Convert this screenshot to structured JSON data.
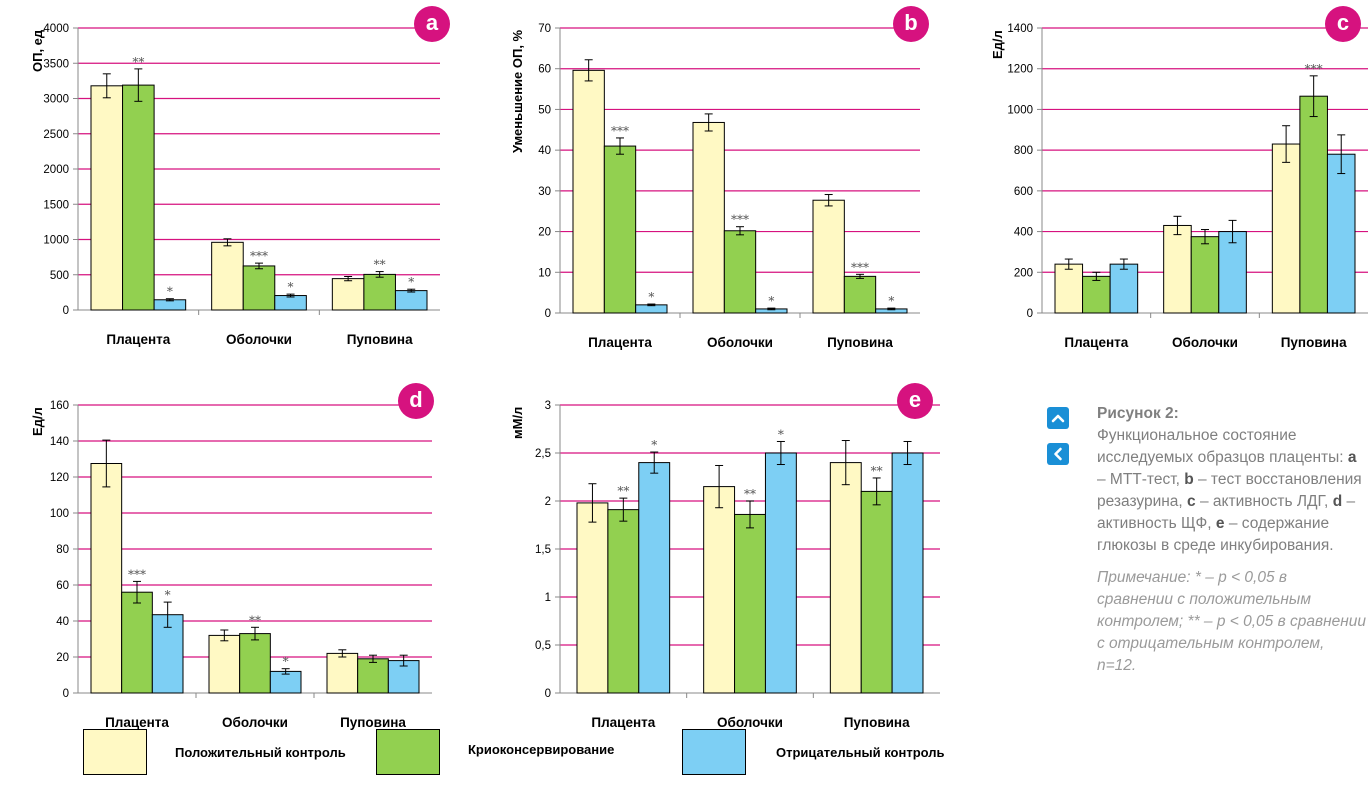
{
  "legend": {
    "positive_label": "Положительный контроль",
    "cryo_label": "Криоконсервирование",
    "negative_label": "Отрицательный контроль",
    "colors": {
      "positive": "#fff9c4",
      "cryo": "#92d050",
      "negative": "#7dcff4"
    }
  },
  "accent_color": "#d6127f",
  "nav": {
    "up_icon": "chevron-up-icon",
    "left_icon": "chevron-left-icon",
    "color": "#1a8fd6"
  },
  "caption": {
    "title": "Рисунок 2:",
    "intro": "Функциональное состояние исследуемых образцов плаценты: ",
    "items": [
      {
        "key": "a",
        "text": " – МТТ-тест,"
      },
      {
        "key": "b",
        "text": " – тест восстановления резазурина,"
      },
      {
        "key": "c",
        "text": " – активность ЛДГ,"
      },
      {
        "key": "d",
        "text": " – активность ЩФ,"
      },
      {
        "key": "e",
        "text": " – содержание глюкозы в среде инкубирования."
      }
    ],
    "note": "Примечание: * – p < 0,05 в сравнении с положительным контролем; ** – p < 0,05 в сравнении с отрицательным контролем, n=12."
  },
  "chart_data": [
    {
      "id": "a",
      "type": "bar",
      "ylabel": "ОП, ед",
      "categories": [
        "Плацента",
        "Оболочки",
        "Пуповина"
      ],
      "ylim": [
        0,
        4000
      ],
      "yticks": [
        "0",
        "500",
        "1000",
        "1500",
        "2000",
        "2500",
        "3000",
        "3500",
        "4000"
      ],
      "series": [
        {
          "values": [
            3180,
            960,
            445
          ],
          "errors": [
            170,
            50,
            30
          ],
          "marks": [
            "",
            "",
            ""
          ]
        },
        {
          "values": [
            3190,
            625,
            505
          ],
          "errors": [
            230,
            40,
            40
          ],
          "marks": [
            "**",
            "***",
            "**"
          ]
        },
        {
          "values": [
            145,
            205,
            275
          ],
          "errors": [
            15,
            20,
            20
          ],
          "marks": [
            "*",
            "*",
            "*"
          ]
        }
      ]
    },
    {
      "id": "b",
      "type": "bar",
      "ylabel": "Уменьшение ОП, %",
      "categories": [
        "Плацента",
        "Оболочки",
        "Пуповина"
      ],
      "ylim": [
        0,
        70
      ],
      "yticks": [
        "0",
        "10",
        "20",
        "30",
        "40",
        "50",
        "60",
        "70"
      ],
      "series": [
        {
          "values": [
            59.6,
            46.8,
            27.7
          ],
          "errors": [
            2.6,
            2.1,
            1.4
          ],
          "marks": [
            "",
            "",
            ""
          ]
        },
        {
          "values": [
            41,
            20.2,
            9
          ],
          "errors": [
            2,
            1,
            0.5
          ],
          "marks": [
            "***",
            "***",
            "***"
          ]
        },
        {
          "values": [
            2,
            1,
            1
          ],
          "errors": [
            0.2,
            0.2,
            0.2
          ],
          "marks": [
            "*",
            "*",
            "*"
          ]
        }
      ]
    },
    {
      "id": "c",
      "type": "bar",
      "ylabel": "Ед/л",
      "categories": [
        "Плацента",
        "Оболочки",
        "Пуповина"
      ],
      "ylim": [
        0,
        1400
      ],
      "yticks": [
        "0",
        "200",
        "400",
        "600",
        "800",
        "1000",
        "1200",
        "1400"
      ],
      "series": [
        {
          "values": [
            240,
            430,
            830
          ],
          "errors": [
            25,
            45,
            90
          ],
          "marks": [
            "",
            "",
            ""
          ]
        },
        {
          "values": [
            180,
            375,
            1065
          ],
          "errors": [
            20,
            35,
            100
          ],
          "marks": [
            "",
            "",
            "***"
          ]
        },
        {
          "values": [
            240,
            400,
            780
          ],
          "errors": [
            25,
            55,
            95
          ],
          "marks": [
            "",
            "",
            ""
          ]
        }
      ]
    },
    {
      "id": "d",
      "type": "bar",
      "ylabel": "Ед/л",
      "categories": [
        "Плацента",
        "Оболочки",
        "Пуповина"
      ],
      "ylim": [
        0,
        160
      ],
      "yticks": [
        "0",
        "20",
        "40",
        "60",
        "80",
        "100",
        "120",
        "140",
        "160"
      ],
      "series": [
        {
          "values": [
            127.5,
            32,
            22
          ],
          "errors": [
            13,
            3,
            2
          ],
          "marks": [
            "",
            "",
            ""
          ]
        },
        {
          "values": [
            56,
            33,
            19
          ],
          "errors": [
            6,
            3.5,
            2
          ],
          "marks": [
            "***",
            "**",
            ""
          ]
        },
        {
          "values": [
            43.5,
            12,
            18
          ],
          "errors": [
            7,
            1.5,
            3
          ],
          "marks": [
            "*",
            "*",
            ""
          ]
        }
      ]
    },
    {
      "id": "e",
      "type": "bar",
      "ylabel": "мМ/л",
      "categories": [
        "Плацента",
        "Оболочки",
        "Пуповина"
      ],
      "ylim": [
        0,
        3
      ],
      "yticks": [
        "0",
        "0,5",
        "1",
        "1,5",
        "2",
        "2,5",
        "3"
      ],
      "series": [
        {
          "values": [
            1.98,
            2.15,
            2.4
          ],
          "errors": [
            0.2,
            0.22,
            0.23
          ],
          "marks": [
            "",
            "",
            ""
          ]
        },
        {
          "values": [
            1.91,
            1.86,
            2.1
          ],
          "errors": [
            0.12,
            0.14,
            0.14
          ],
          "marks": [
            "**",
            "**",
            "**"
          ]
        },
        {
          "values": [
            2.4,
            2.5,
            2.5
          ],
          "errors": [
            0.11,
            0.12,
            0.12
          ],
          "marks": [
            "*",
            "*",
            ""
          ]
        }
      ]
    }
  ]
}
